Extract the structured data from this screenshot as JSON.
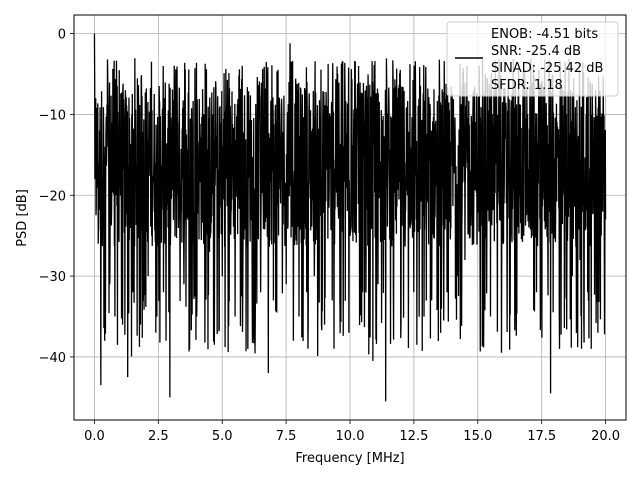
{
  "chart_data": {
    "type": "line",
    "xlabel": "Frequency [MHz]",
    "ylabel": "PSD [dB]",
    "xlim": [
      -0.8,
      20.8
    ],
    "ylim": [
      -47.8,
      2.3
    ],
    "xticks": [
      0.0,
      2.5,
      5.0,
      7.5,
      10.0,
      12.5,
      15.0,
      17.5,
      20.0
    ],
    "xtick_labels": [
      "0.0",
      "2.5",
      "5.0",
      "7.5",
      "10.0",
      "12.5",
      "15.0",
      "17.5",
      "20.0"
    ],
    "yticks": [
      0,
      -10,
      -20,
      -30,
      -40
    ],
    "ytick_labels": [
      "0",
      "−10",
      "−20",
      "−30",
      "−40"
    ],
    "grid": true,
    "legend_position": "top-right",
    "legend_lines": [
      "ENOB: -4.51 bits",
      "SNR: -25.4 dB",
      "SINAD: -25.42 dB",
      "SFDR: 1.18"
    ],
    "line_color": "#000000",
    "series": [
      {
        "x_start": 0.0,
        "x_end": 20.0,
        "num_points": 2000,
        "typical_range": [
          -30,
          -6
        ],
        "points": [
          [
            0.0,
            0.0
          ],
          [
            0.02,
            -18
          ],
          [
            0.05,
            -8
          ],
          [
            0.1,
            -14
          ],
          [
            0.15,
            -26
          ],
          [
            0.2,
            -12
          ],
          [
            0.25,
            -43.5
          ],
          [
            0.3,
            -22
          ],
          [
            0.4,
            -38
          ],
          [
            0.5,
            -14
          ],
          [
            0.6,
            -31
          ],
          [
            0.7,
            -11
          ],
          [
            0.8,
            -35
          ],
          [
            0.9,
            -38.5
          ],
          [
            1.0,
            -15
          ],
          [
            1.1,
            -36
          ],
          [
            1.2,
            -11
          ],
          [
            1.3,
            -42.5
          ],
          [
            1.5,
            -32
          ],
          [
            1.8,
            -36
          ],
          [
            2.1,
            -30
          ],
          [
            2.4,
            -37
          ],
          [
            2.7,
            -32
          ],
          [
            2.8,
            -38
          ],
          [
            2.95,
            -45
          ],
          [
            3.2,
            -9
          ],
          [
            3.5,
            -31
          ],
          [
            4.0,
            -35
          ],
          [
            4.5,
            -27
          ],
          [
            5.0,
            -30
          ],
          [
            5.5,
            -35
          ],
          [
            5.8,
            -32
          ],
          [
            6.0,
            -39
          ],
          [
            6.5,
            -32
          ],
          [
            6.8,
            -42
          ],
          [
            7.0,
            -33
          ],
          [
            7.5,
            -31
          ],
          [
            7.65,
            -1.2
          ],
          [
            8.0,
            -35
          ],
          [
            8.3,
            -32
          ],
          [
            8.6,
            -30
          ],
          [
            9.0,
            -36
          ],
          [
            9.3,
            -33
          ],
          [
            9.6,
            -33
          ],
          [
            10.0,
            -25
          ],
          [
            10.5,
            -32
          ],
          [
            10.9,
            -40.5
          ],
          [
            11.1,
            -31
          ],
          [
            11.4,
            -45.5
          ],
          [
            11.7,
            -31
          ],
          [
            12.0,
            -36
          ],
          [
            12.5,
            -32
          ],
          [
            12.9,
            -35
          ],
          [
            13.2,
            -33
          ],
          [
            13.8,
            -32
          ],
          [
            14.2,
            -30
          ],
          [
            14.5,
            -28
          ],
          [
            15.0,
            -22
          ],
          [
            15.5,
            -35
          ],
          [
            16.0,
            -26
          ],
          [
            16.5,
            -34
          ],
          [
            16.8,
            -25
          ],
          [
            17.3,
            -32
          ],
          [
            17.5,
            -30
          ],
          [
            17.85,
            -44.5
          ],
          [
            18.2,
            -39
          ],
          [
            18.7,
            -30
          ],
          [
            19.0,
            -28
          ],
          [
            19.3,
            -32
          ],
          [
            19.7,
            -37
          ],
          [
            20.0,
            -23
          ]
        ]
      }
    ]
  }
}
